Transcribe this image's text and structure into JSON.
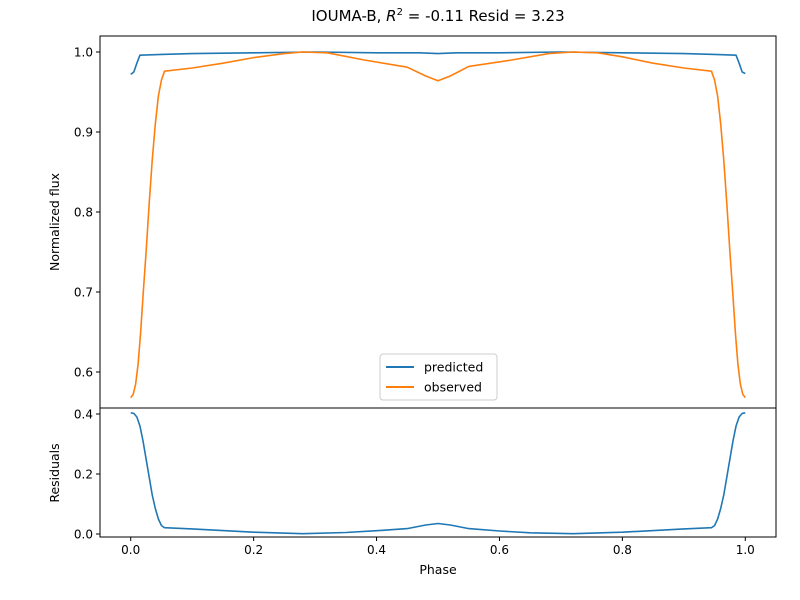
{
  "chart_data": [
    {
      "type": "line",
      "title_parts": {
        "prefix": "IOUMA-B, ",
        "r_symbol": "R",
        "r_exponent": "2",
        "suffix": " = -0.11 Resid = 3.23"
      },
      "xlabel": "",
      "ylabel": "Normalized flux",
      "xlim": [
        -0.05,
        1.05
      ],
      "ylim": [
        0.555,
        1.02
      ],
      "yticks": [
        0.6,
        0.7,
        0.8,
        0.9,
        1.0
      ],
      "ytick_labels": [
        "0.6",
        "0.7",
        "0.8",
        "0.9",
        "1.0"
      ],
      "grid": false,
      "legend_position": "bottom-center",
      "series": [
        {
          "name": "predicted",
          "color": "#1f77b4",
          "points": [
            [
              0.0,
              0.972
            ],
            [
              0.005,
              0.975
            ],
            [
              0.01,
              0.986
            ],
            [
              0.015,
              0.996
            ],
            [
              0.05,
              0.997
            ],
            [
              0.1,
              0.998
            ],
            [
              0.2,
              0.999
            ],
            [
              0.3,
              1.0
            ],
            [
              0.4,
              0.999
            ],
            [
              0.47,
              0.999
            ],
            [
              0.5,
              0.998
            ],
            [
              0.53,
              0.999
            ],
            [
              0.6,
              0.999
            ],
            [
              0.7,
              1.0
            ],
            [
              0.8,
              0.999
            ],
            [
              0.9,
              0.998
            ],
            [
              0.95,
              0.997
            ],
            [
              0.985,
              0.996
            ],
            [
              0.99,
              0.986
            ],
            [
              0.995,
              0.975
            ],
            [
              1.0,
              0.973
            ]
          ]
        },
        {
          "name": "observed",
          "color": "#ff7f0e",
          "points": [
            [
              0.0,
              0.568
            ],
            [
              0.004,
              0.572
            ],
            [
              0.008,
              0.585
            ],
            [
              0.012,
              0.61
            ],
            [
              0.016,
              0.648
            ],
            [
              0.02,
              0.695
            ],
            [
              0.025,
              0.75
            ],
            [
              0.03,
              0.81
            ],
            [
              0.035,
              0.865
            ],
            [
              0.04,
              0.91
            ],
            [
              0.045,
              0.945
            ],
            [
              0.05,
              0.965
            ],
            [
              0.055,
              0.976
            ],
            [
              0.1,
              0.98
            ],
            [
              0.15,
              0.986
            ],
            [
              0.2,
              0.993
            ],
            [
              0.25,
              0.998
            ],
            [
              0.28,
              1.0
            ],
            [
              0.32,
              0.999
            ],
            [
              0.38,
              0.99
            ],
            [
              0.45,
              0.981
            ],
            [
              0.48,
              0.97
            ],
            [
              0.5,
              0.964
            ],
            [
              0.52,
              0.97
            ],
            [
              0.55,
              0.982
            ],
            [
              0.62,
              0.99
            ],
            [
              0.68,
              0.998
            ],
            [
              0.72,
              1.0
            ],
            [
              0.76,
              0.999
            ],
            [
              0.8,
              0.994
            ],
            [
              0.85,
              0.986
            ],
            [
              0.9,
              0.98
            ],
            [
              0.945,
              0.976
            ],
            [
              0.95,
              0.965
            ],
            [
              0.955,
              0.945
            ],
            [
              0.96,
              0.91
            ],
            [
              0.965,
              0.865
            ],
            [
              0.97,
              0.81
            ],
            [
              0.975,
              0.75
            ],
            [
              0.98,
              0.695
            ],
            [
              0.984,
              0.648
            ],
            [
              0.988,
              0.61
            ],
            [
              0.992,
              0.585
            ],
            [
              0.996,
              0.572
            ],
            [
              1.0,
              0.568
            ]
          ]
        }
      ]
    },
    {
      "type": "line",
      "xlabel": "Phase",
      "ylabel": "Residuals",
      "xlim": [
        -0.05,
        1.05
      ],
      "ylim": [
        -0.01,
        0.42
      ],
      "xticks": [
        0.0,
        0.2,
        0.4,
        0.6,
        0.8,
        1.0
      ],
      "xtick_labels": [
        "0.0",
        "0.2",
        "0.4",
        "0.6",
        "0.8",
        "1.0"
      ],
      "yticks": [
        0.0,
        0.2,
        0.4
      ],
      "ytick_labels": [
        "0.0",
        "0.2",
        "0.4"
      ],
      "grid": false,
      "series": [
        {
          "color": "#1f77b4",
          "points": [
            [
              0.0,
              0.404
            ],
            [
              0.005,
              0.402
            ],
            [
              0.01,
              0.39
            ],
            [
              0.015,
              0.36
            ],
            [
              0.02,
              0.31
            ],
            [
              0.025,
              0.25
            ],
            [
              0.03,
              0.19
            ],
            [
              0.035,
              0.13
            ],
            [
              0.04,
              0.085
            ],
            [
              0.045,
              0.05
            ],
            [
              0.05,
              0.028
            ],
            [
              0.055,
              0.021
            ],
            [
              0.1,
              0.017
            ],
            [
              0.2,
              0.006
            ],
            [
              0.28,
              0.001
            ],
            [
              0.35,
              0.005
            ],
            [
              0.4,
              0.011
            ],
            [
              0.45,
              0.018
            ],
            [
              0.48,
              0.03
            ],
            [
              0.5,
              0.035
            ],
            [
              0.52,
              0.03
            ],
            [
              0.55,
              0.018
            ],
            [
              0.6,
              0.01
            ],
            [
              0.65,
              0.004
            ],
            [
              0.72,
              0.001
            ],
            [
              0.8,
              0.006
            ],
            [
              0.9,
              0.017
            ],
            [
              0.945,
              0.021
            ],
            [
              0.95,
              0.028
            ],
            [
              0.955,
              0.05
            ],
            [
              0.96,
              0.085
            ],
            [
              0.965,
              0.13
            ],
            [
              0.97,
              0.19
            ],
            [
              0.975,
              0.25
            ],
            [
              0.98,
              0.31
            ],
            [
              0.985,
              0.36
            ],
            [
              0.99,
              0.39
            ],
            [
              0.995,
              0.402
            ],
            [
              1.0,
              0.404
            ]
          ]
        }
      ]
    }
  ]
}
